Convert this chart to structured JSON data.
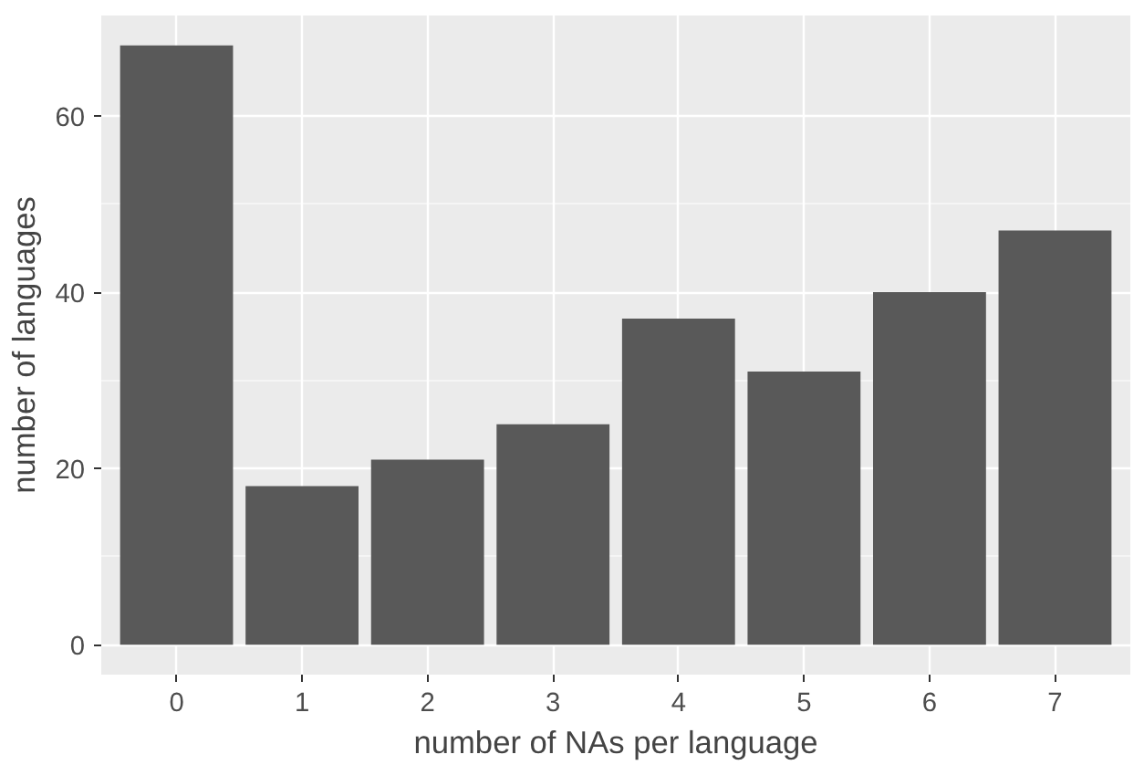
{
  "chart_data": {
    "type": "bar",
    "xlabel": "number of NAs per language",
    "ylabel": "number of languages",
    "categories": [
      "0",
      "1",
      "2",
      "3",
      "4",
      "5",
      "6",
      "7"
    ],
    "values": [
      68,
      18,
      21,
      25,
      37,
      31,
      40,
      47
    ],
    "color": "#595959",
    "ylim": [
      -3.4,
      71.4
    ],
    "yticks": [
      0,
      20,
      40,
      60
    ],
    "grid": true
  }
}
